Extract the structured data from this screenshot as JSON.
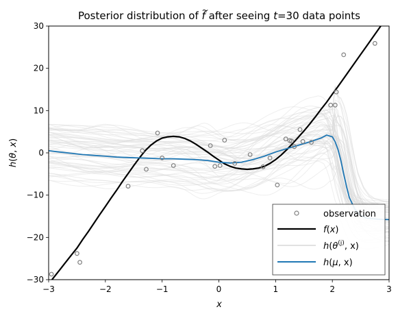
{
  "chart_data": {
    "type": "line",
    "title": {
      "pre": "Posterior distribution of ",
      "var": "f",
      "accent": "~",
      "mid": " after seeing ",
      "t": "t",
      "post": "=30 data points"
    },
    "xlabel": "x",
    "ylabel": {
      "h": "h",
      "open": "(",
      "theta": "θ",
      "comma": ", ",
      "x": "x",
      "close": ")"
    },
    "xlim": [
      -3,
      3
    ],
    "ylim": [
      -30,
      30
    ],
    "xticks": [
      -3,
      -2,
      -1,
      0,
      1,
      2,
      3
    ],
    "yticks": [
      -30,
      -20,
      -10,
      0,
      10,
      20,
      30
    ],
    "grid": false,
    "legend_position": "lower-right",
    "legend": {
      "observation": "observation",
      "f": {
        "name": "f",
        "open": "(",
        "x": "x",
        "close": ")"
      },
      "samples": {
        "h": "h",
        "theta": "θ",
        "sup": "(j)",
        "rest": ", x)",
        "open": "("
      },
      "mean": {
        "h": "h",
        "mu": "μ",
        "rest": ", x)",
        "open": "("
      }
    },
    "colors": {
      "observation": "#808080",
      "true_function": "#000000",
      "samples": "#d9d9d9",
      "mean": "#1f77b4"
    },
    "observations": [
      [
        -2.95,
        -28.7
      ],
      [
        -2.5,
        -23.8
      ],
      [
        -2.45,
        -25.9
      ],
      [
        -1.6,
        -7.9
      ],
      [
        -1.35,
        0.5
      ],
      [
        -1.28,
        -3.9
      ],
      [
        -1.08,
        4.7
      ],
      [
        -1.0,
        -1.2
      ],
      [
        -0.15,
        1.7
      ],
      [
        -0.07,
        -3.2
      ],
      [
        0.02,
        -3.0
      ],
      [
        0.1,
        3.0
      ],
      [
        0.28,
        -2.5
      ],
      [
        0.78,
        -3.3
      ],
      [
        0.9,
        -1.2
      ],
      [
        1.03,
        -7.6
      ],
      [
        1.18,
        3.3
      ],
      [
        1.28,
        2.8
      ],
      [
        1.33,
        1.5
      ],
      [
        1.43,
        5.5
      ],
      [
        1.48,
        2.7
      ],
      [
        1.63,
        2.5
      ],
      [
        1.97,
        11.3
      ],
      [
        2.05,
        11.3
      ],
      [
        2.07,
        14.4
      ],
      [
        2.2,
        23.2
      ],
      [
        2.75,
        25.9
      ],
      [
        -0.8,
        -3.0
      ],
      [
        0.55,
        -0.4
      ],
      [
        1.25,
        2.9
      ]
    ],
    "true_function": {
      "x": [
        -3.0,
        -2.9,
        -2.8,
        -2.7,
        -2.6,
        -2.5,
        -2.4,
        -2.3,
        -2.2,
        -2.1,
        -2.0,
        -1.9,
        -1.8,
        -1.7,
        -1.6,
        -1.5,
        -1.4,
        -1.3,
        -1.2,
        -1.1,
        -1.0,
        -0.9,
        -0.8,
        -0.7,
        -0.6,
        -0.5,
        -0.4,
        -0.3,
        -0.2,
        -0.1,
        0.0,
        0.1,
        0.2,
        0.3,
        0.4,
        0.5,
        0.6,
        0.7,
        0.8,
        0.9,
        1.0,
        1.1,
        1.2,
        1.3,
        1.4,
        1.5,
        1.6,
        1.7,
        1.8,
        1.9,
        2.0,
        2.1,
        2.2,
        2.3,
        2.4,
        2.5,
        2.6,
        2.7,
        2.8,
        2.9,
        3.0
      ],
      "y": [
        -31.0,
        -29.3,
        -27.6,
        -25.9,
        -24.2,
        -22.5,
        -20.5,
        -18.6,
        -16.6,
        -14.6,
        -12.7,
        -10.7,
        -8.8,
        -6.8,
        -4.9,
        -3.0,
        -1.2,
        0.5,
        1.8,
        2.8,
        3.5,
        3.8,
        3.9,
        3.8,
        3.4,
        2.8,
        2.0,
        1.1,
        0.2,
        -0.8,
        -1.7,
        -2.6,
        -3.2,
        -3.6,
        -3.8,
        -3.9,
        -3.8,
        -3.6,
        -3.2,
        -2.5,
        -1.6,
        -0.5,
        0.8,
        2.2,
        3.7,
        5.2,
        6.8,
        8.5,
        10.3,
        12.0,
        13.9,
        15.7,
        17.6,
        19.5,
        21.4,
        23.3,
        25.2,
        27.1,
        29.0,
        30.9,
        32.8
      ]
    },
    "mean_function": {
      "x": [
        -3.0,
        -2.8,
        -2.6,
        -2.4,
        -2.2,
        -2.0,
        -1.8,
        -1.6,
        -1.4,
        -1.2,
        -1.0,
        -0.8,
        -0.6,
        -0.4,
        -0.2,
        0.0,
        0.2,
        0.4,
        0.6,
        0.8,
        1.0,
        1.2,
        1.4,
        1.6,
        1.8,
        1.9,
        2.0,
        2.05,
        2.1,
        2.15,
        2.2,
        2.25,
        2.3,
        2.4,
        2.5,
        2.6,
        2.8,
        3.0
      ],
      "y": [
        0.5,
        0.2,
        -0.1,
        -0.4,
        -0.6,
        -0.8,
        -1.0,
        -1.1,
        -1.2,
        -1.3,
        -1.4,
        -1.4,
        -1.5,
        -1.6,
        -1.8,
        -2.2,
        -2.4,
        -2.2,
        -1.6,
        -0.8,
        0.2,
        1.0,
        1.8,
        2.6,
        3.5,
        4.2,
        3.8,
        2.6,
        0.8,
        -1.8,
        -5.0,
        -8.0,
        -10.6,
        -13.4,
        -14.8,
        -15.4,
        -15.7,
        -15.8
      ]
    },
    "sample_count": 60
  }
}
